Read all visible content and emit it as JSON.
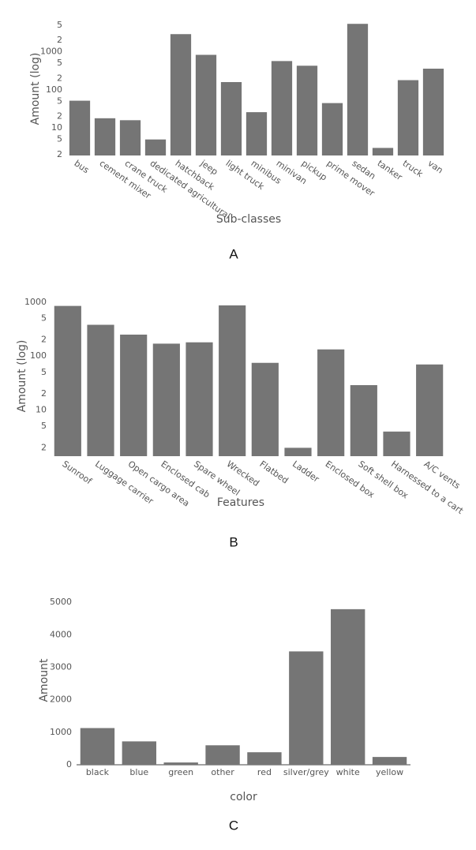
{
  "chart_data": [
    {
      "type": "bar",
      "log_scale": true,
      "caption": "A",
      "x_label": "Sub-classes",
      "y_label": "Amount (log)",
      "color": "#757575",
      "categories": [
        "bus",
        "cement mixer",
        "crane truck",
        "dedicated agricultural",
        "hatchback",
        "jeep",
        "light truck",
        "minibus",
        "minivan",
        "pickup",
        "prime mover",
        "sedan",
        "tanker",
        "truck",
        "van"
      ],
      "values": [
        52,
        18,
        16,
        5,
        2900,
        830,
        160,
        26,
        570,
        430,
        45,
        5400,
        3,
        180,
        360
      ],
      "ylim": [
        1.9,
        6000
      ],
      "yticks": [
        2,
        5,
        10,
        {
          "value": 20,
          "label": "2"
        },
        {
          "value": 50,
          "label": "5"
        },
        100,
        {
          "value": 200,
          "label": "2"
        },
        {
          "value": 500,
          "label": "5"
        },
        1000,
        {
          "value": 2000,
          "label": "2"
        },
        {
          "value": 5000,
          "label": "5"
        }
      ]
    },
    {
      "type": "bar",
      "log_scale": true,
      "caption": "B",
      "x_label": "Features",
      "y_label": "Amount (log)",
      "color": "#757575",
      "categories": [
        "Sunroof",
        "Luggage carrier",
        "Open cargo area",
        "Enclosed cab",
        "Spare wheel",
        "Wrecked",
        "Flatbed",
        "Ladder",
        "Enclosed box",
        "Soft shell box",
        "Harnessed to a cart",
        "A/C vents"
      ],
      "values": [
        850,
        380,
        250,
        170,
        180,
        870,
        75,
        2,
        133,
        29,
        4,
        70
      ],
      "ylim": [
        1.4,
        1300
      ],
      "yticks": [
        2,
        5,
        10,
        {
          "value": 20,
          "label": "2"
        },
        {
          "value": 50,
          "label": "5"
        },
        100,
        {
          "value": 200,
          "label": "2"
        },
        {
          "value": 500,
          "label": "5"
        },
        1000
      ]
    },
    {
      "type": "bar",
      "log_scale": false,
      "caption": "C",
      "x_label": "color",
      "y_label": "Amount",
      "color": "#757575",
      "categories": [
        "black",
        "blue",
        "green",
        "other",
        "red",
        "silver/grey",
        "white",
        "yellow"
      ],
      "values": [
        1130,
        720,
        70,
        600,
        385,
        3490,
        4790,
        240
      ],
      "ylim": [
        0,
        5200
      ],
      "yticks": [
        0,
        1000,
        2000,
        3000,
        4000,
        5000
      ]
    }
  ]
}
